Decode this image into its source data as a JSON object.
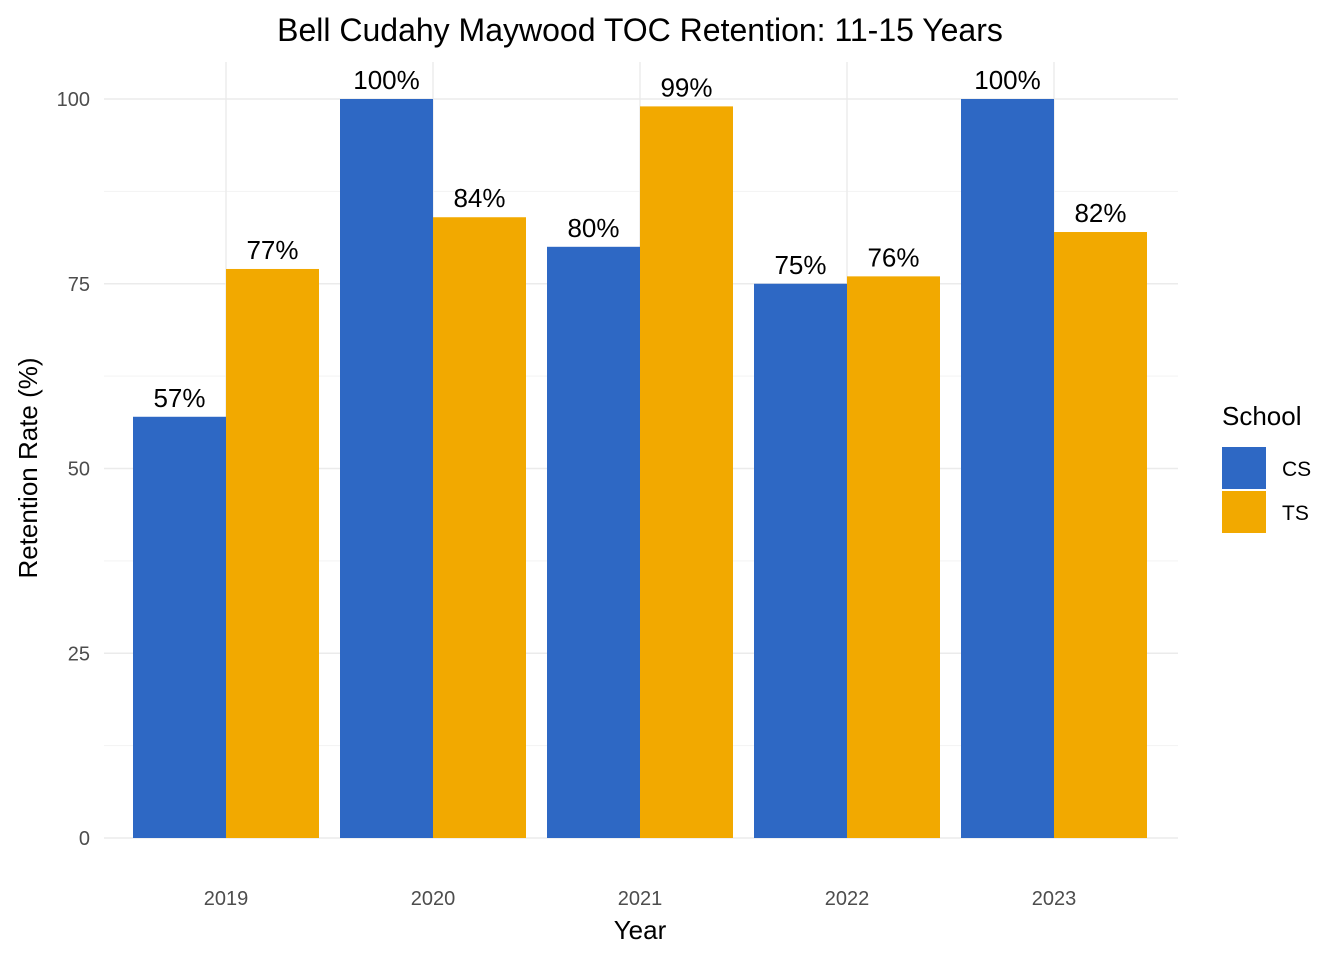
{
  "chart_data": {
    "type": "bar",
    "title": "Bell Cudahy Maywood TOC Retention: 11-15 Years",
    "xlabel": "Year",
    "ylabel": "Retention Rate (%)",
    "categories": [
      "2019",
      "2020",
      "2021",
      "2022",
      "2023"
    ],
    "series": [
      {
        "name": "CS",
        "color": "#2e68c4",
        "values": [
          57,
          100,
          80,
          75,
          100
        ],
        "labels": [
          "57%",
          "100%",
          "80%",
          "75%",
          "100%"
        ]
      },
      {
        "name": "TS",
        "color": "#f2a900",
        "values": [
          77,
          84,
          99,
          76,
          82
        ],
        "labels": [
          "77%",
          "84%",
          "99%",
          "76%",
          "82%"
        ]
      }
    ],
    "ylim": [
      0,
      100
    ],
    "yticks": [
      0,
      25,
      50,
      75,
      100
    ],
    "ytick_labels": [
      "0",
      "25",
      "50",
      "75",
      "100"
    ],
    "grid": true,
    "legend": {
      "title": "School",
      "placement": "right"
    }
  }
}
